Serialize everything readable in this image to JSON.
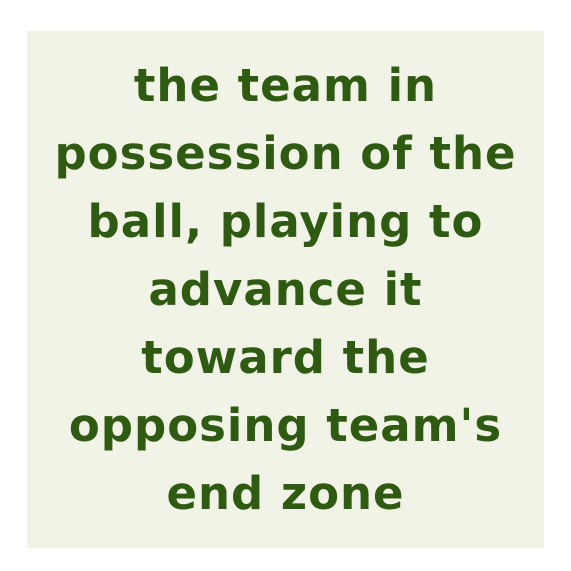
{
  "card": {
    "background_color": "#f2f3e7",
    "text_color": "#2f5a12",
    "lines": [
      "the team in",
      "possession of the",
      "ball, playing to",
      "advance it",
      "toward the",
      "opposing team's",
      "end zone"
    ]
  }
}
